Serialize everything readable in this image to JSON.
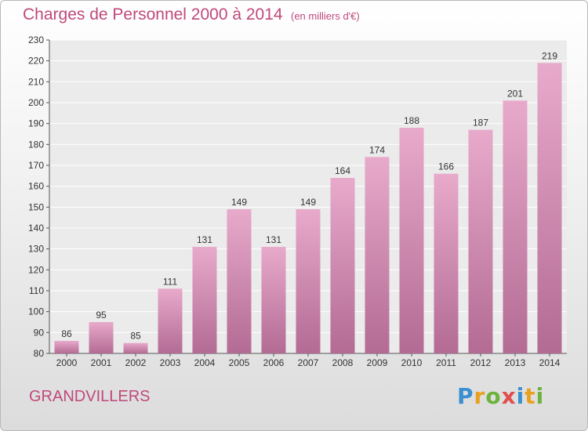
{
  "header": {
    "title": "Charges de Personnel 2000 à 2014",
    "subtitle": "(en milliers d'€)"
  },
  "footer": {
    "commune": "GRANDVILLERS",
    "logo_text": "Proxiti"
  },
  "colors": {
    "bar_top": "#e8aacb",
    "bar_bottom": "#b36b94",
    "title": "#c0487a"
  },
  "chart_data": {
    "type": "bar",
    "title": "Charges de Personnel 2000 à 2014",
    "subtitle": "(en milliers d'€)",
    "categories": [
      "2000",
      "2001",
      "2002",
      "2003",
      "2004",
      "2005",
      "2006",
      "2007",
      "2008",
      "2009",
      "2010",
      "2011",
      "2012",
      "2013",
      "2014"
    ],
    "values": [
      86,
      95,
      85,
      111,
      131,
      149,
      131,
      149,
      164,
      174,
      188,
      166,
      187,
      201,
      219
    ],
    "ylim": [
      80,
      230
    ],
    "yticks": [
      80,
      90,
      100,
      110,
      120,
      130,
      140,
      150,
      160,
      170,
      180,
      190,
      200,
      210,
      220,
      230
    ],
    "grid": true,
    "xlabel": "",
    "ylabel": ""
  }
}
